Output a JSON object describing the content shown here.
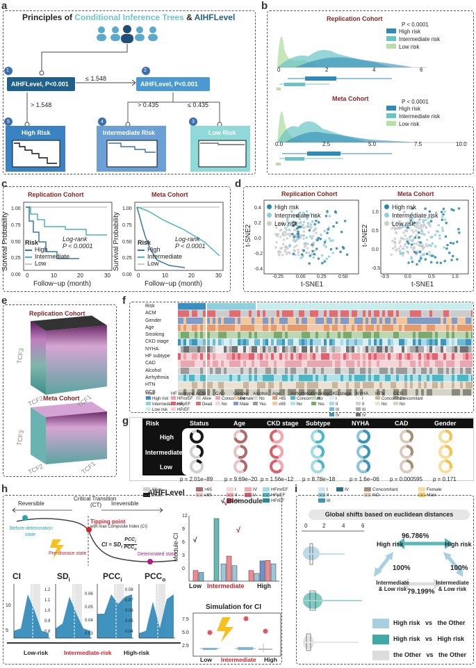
{
  "panels": {
    "a": "a",
    "b": "b",
    "c": "c",
    "d": "d",
    "e": "e",
    "f": "f",
    "g": "g",
    "h": "h",
    "i": "i"
  },
  "panel_a": {
    "title_prefix": "Principles of ",
    "title_cit": "Conditional Inference Trees",
    "title_amp": " & ",
    "title_aihf": "AIHFLevel",
    "node1_num": "1",
    "node1_label": "AIHFLevel, P<0.001",
    "node2_num": "2",
    "node2_label": "AIHFLevel, P<0.001",
    "split_le1548": "≤ 1.548",
    "split_gt1548": "> 1.548",
    "split_gt0435": "> 0.435",
    "split_le0435": "≤ 0.435",
    "leaf5_num": "5",
    "leaf5_label": "High Risk",
    "leaf4_num": "4",
    "leaf4_label": "Intermediate Risk",
    "leaf3_num": "3",
    "leaf3_label": "Low Risk"
  },
  "panel_b": {
    "top_title": "Replication Cohort",
    "top_p": "P < 0.0001",
    "top_xticks": [
      "0",
      "2",
      "4",
      "6"
    ],
    "bottom_title": "Meta Cohort",
    "bottom_p": "P < 0.0001",
    "bottom_xticks": [
      "0.0",
      "2.5",
      "5.0",
      "7.5",
      "10.0"
    ],
    "legend": [
      "High risk",
      "Intermediate risk",
      "Low risk"
    ]
  },
  "panel_c": {
    "left_title": "Replication Cohort",
    "right_title": "Meta Cohort",
    "ylabel": "Survival Probability",
    "xlabel": "Follow−up (month)",
    "yticks": [
      "1.00",
      "0.75",
      "0.50",
      "0.25",
      "0.00"
    ],
    "xticks": [
      "0",
      "10",
      "20",
      "30"
    ],
    "risk_title": "Risk",
    "risk_items": [
      "High",
      "Intermediate",
      "Low"
    ],
    "logrank": "Log-rank",
    "pval": "P < 0.0001"
  },
  "panel_d": {
    "left_title": "Replication Cohort",
    "right_title": "Meta Cohort",
    "ylabel": "t-SNE2",
    "xlabel": "t-SNE1",
    "left_yticks": [
      "0.4",
      "0.2",
      "0.0",
      "-0.2",
      "-0.4"
    ],
    "left_xticks": [
      "-0.25",
      "0.00",
      "0.25",
      "0.50"
    ],
    "right_yticks": [
      "1.0",
      "0.5",
      "0.0",
      "-0.5"
    ],
    "right_xticks": [
      "-0.5",
      "0.0",
      "0.5",
      "1.0"
    ],
    "legend": [
      "High risk",
      "Intermediate risk",
      "Low risk"
    ]
  },
  "panel_e": {
    "top_title": "Replication Cohort",
    "bottom_title": "Meta Cohort",
    "axis_z": "TCF3",
    "axis_x": "TCF2",
    "axis_y": "TCF1"
  },
  "panel_f": {
    "rows": [
      "Risk",
      "ACM",
      "Gender",
      "Age",
      "Smoking",
      "CKD stage",
      "NYHA",
      "HF subtype",
      "CAD",
      "Alcohol",
      "Arrhythmia",
      "HTN",
      "CCB"
    ],
    "legend_groups": [
      {
        "title": "Risk",
        "items": [
          "High risk",
          "Intermediate risk",
          "Low risk"
        ],
        "colors": [
          "#3a8fbf",
          "#8fd0dc",
          "#c9ecec"
        ]
      },
      {
        "title": "HF subtype",
        "items": [
          "HFmrEF",
          "HFpEF",
          "HFrEF"
        ],
        "colors": [
          "#f0a0a8",
          "#e06070",
          "#f6cfd2"
        ]
      },
      {
        "title": "ACM",
        "items": [
          "Alive",
          "Dead"
        ],
        "colors": [
          "#cccccc",
          "#e06c72"
        ]
      },
      {
        "title": "CAD",
        "items": [
          "Concomitant",
          "No"
        ],
        "colors": [
          "#e7a7b0",
          "#f5d5d8"
        ]
      },
      {
        "title": "Gender",
        "items": [
          "Female",
          "Male"
        ],
        "colors": [
          "#f3c59a",
          "#7f9cc6"
        ]
      },
      {
        "title": "Alcohol",
        "items": [
          "No",
          "Yes"
        ],
        "colors": [
          "#d8d8d8",
          "#9a9a9a"
        ]
      },
      {
        "title": "Age",
        "items": [
          ">65",
          "≤65"
        ],
        "colors": [
          "#e39a6c",
          "#f1c9a8"
        ]
      },
      {
        "title": "Arrhythmia",
        "items": [
          "Concomitant",
          "No"
        ],
        "colors": [
          "#4bb7c5",
          "#b3e1e8"
        ]
      },
      {
        "title": "Smoking",
        "items": [
          "No",
          "Yes"
        ],
        "colors": [
          "#b9d7b0",
          "#79a96c"
        ]
      },
      {
        "title": "CKD stage",
        "items": [
          "I",
          "II",
          "III",
          "IV",
          "V"
        ],
        "colors": [
          "#d7eef3",
          "#a9d9e6",
          "#6cbad3",
          "#3d95bb",
          "#1f6b96"
        ]
      },
      {
        "title": "NYHA",
        "items": [
          "I",
          "II",
          "III",
          "IV"
        ],
        "colors": [
          "#eeeeee",
          "#cfcfcf",
          "#a8a8a8",
          "#6f6f6f"
        ]
      },
      {
        "title": "HTN",
        "items": [
          "Concomitant",
          "No"
        ],
        "colors": [
          "#c9b59a",
          "#ece2d3"
        ]
      },
      {
        "title": "CCB",
        "items": [
          "Concomitant",
          "No"
        ],
        "colors": [
          "#8a8a7a",
          "#d6d4c8"
        ]
      }
    ]
  },
  "panel_g": {
    "headers": [
      "Risk",
      "Status",
      "Age",
      "CKD stage",
      "Subtype",
      "NYHA",
      "CAD",
      "Gender"
    ],
    "row_labels": [
      "High",
      "Intermediate",
      "Low"
    ],
    "pvalues": [
      "p = 2.01e−89",
      "p = 9.69e−20",
      "p = 1.56e−12",
      "p = 8.78e−18",
      "p = 1.6e−06",
      "p = 0.000595",
      "p = 0.171"
    ],
    "footer_title": "AIHFLevel",
    "legend": {
      "status": [
        "Alive",
        "Dead"
      ],
      "age": [
        ">65",
        "≤65"
      ],
      "ckd": [
        "I",
        "II",
        "III",
        "IV",
        "V"
      ],
      "subtype": [
        "HFmrEF",
        "HFpEF",
        "HFrEF"
      ],
      "nyha": [
        "I",
        "II",
        "III",
        "IV"
      ],
      "cad": [
        "Concomitant",
        "NO"
      ],
      "gender": [
        "Female",
        "Male"
      ]
    }
  },
  "panel_h": {
    "reversible": "Reversible",
    "critical": "Critical Transition",
    "critical_ct": "(CT)",
    "irreversible": "Irreversible",
    "tipping": "Tipping point",
    "tipping_sub": "with max Composite Index (CI)",
    "before": "Before-deterioration",
    "before2": "state",
    "predisease": "Pre-disease state",
    "deteriorated": "Deteriorated state",
    "formula": "CI = SD",
    "formula_num": "PCC",
    "formula_den": "PCC",
    "module_title": "√ Biomodule",
    "module_ylabel": "Module-CI",
    "module_yticks": [
      "12",
      "9",
      "6",
      "3",
      "0"
    ],
    "module_groups": [
      "Low",
      "Intermediate",
      "High"
    ],
    "check": "√",
    "metrics": [
      "CI",
      "SD",
      "PCC",
      "PCC"
    ],
    "metric_subs": [
      "",
      "i",
      "i",
      "o"
    ],
    "ci_yticks": [
      "10",
      "5"
    ],
    "sd_yticks": [
      "1.2",
      "1.1",
      "1.0",
      "0.9",
      "0.8"
    ],
    "pcci_yticks": [
      "0.06",
      "0.05",
      "0.04",
      "0.03"
    ],
    "pcco_yticks": [
      "0.08",
      "0.07",
      "0.06",
      "0.05",
      "0.04"
    ],
    "states": [
      "Low-risk",
      "Intermediate-risk",
      "High-risk"
    ],
    "sim_title": "Simulation for CI",
    "sim_yticks": [
      "7.5",
      "5.0",
      "2.5"
    ],
    "sim_groups": [
      "Low",
      "Intermediate",
      "High"
    ]
  },
  "panel_i": {
    "title": "Global shifts based on euclidean distances",
    "xticks": [
      "0",
      "2",
      "4",
      "6"
    ],
    "nodes": [
      "High risk",
      "High risk",
      "Intermediate\n& Low risk",
      "Intermediate\n& Low risk"
    ],
    "pct_top": "96.786%",
    "pct_left": "100%",
    "pct_right": "100%",
    "pct_bottom": "79.199%",
    "legend": [
      "High risk   vs   the Other",
      "High risk   vs   High risk",
      "the Other   vs   the Other"
    ]
  },
  "colors": {
    "dark": "#1f5f8b",
    "mid": "#3a8fbf",
    "teal": "#4ab4b8",
    "light": "#a6dbe0",
    "lightgreen": "#c7e8b5",
    "red": "#d3202a",
    "maroon": "#8b2323"
  }
}
